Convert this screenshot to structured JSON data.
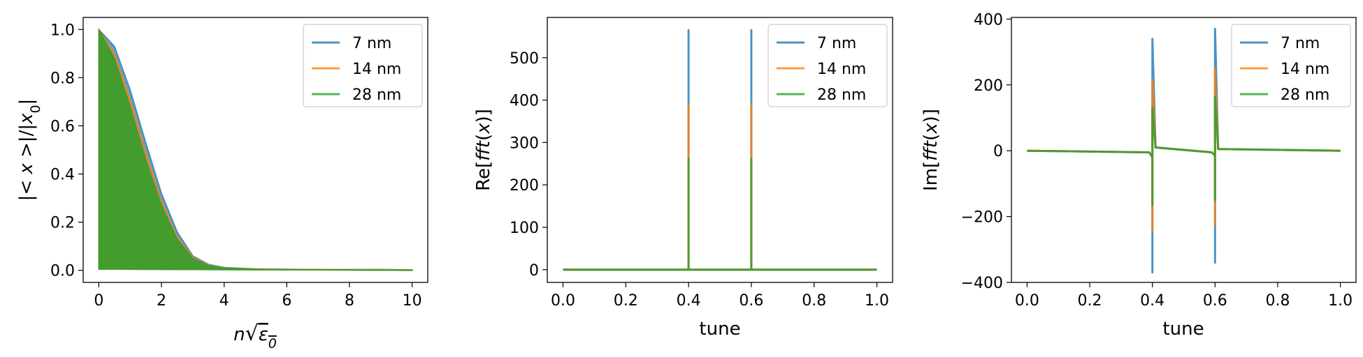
{
  "chart_data": [
    {
      "type": "line",
      "title": "",
      "xlabel": "nsqrt(eps0)",
      "ylabel": "|<x>|/|x0|",
      "xlim": [
        -0.5,
        10.5
      ],
      "ylim": [
        -0.05,
        1.05
      ],
      "xticks": [
        0,
        2,
        4,
        6,
        8,
        10
      ],
      "xtick_labels": [
        "0",
        "2",
        "4",
        "6",
        "8",
        "10"
      ],
      "yticks": [
        0.0,
        0.2,
        0.4,
        0.6,
        0.8,
        1.0
      ],
      "ytick_labels": [
        "0.0",
        "0.2",
        "0.4",
        "0.6",
        "0.8",
        "1.0"
      ],
      "legend": "top-right",
      "grid": false,
      "series": [
        {
          "name": "7 nm",
          "color": "#1f77b4",
          "x": [
            0,
            0.5,
            1.0,
            1.5,
            2.0,
            2.5,
            3.0,
            3.5,
            4.0,
            5.0,
            6.0,
            7.0,
            8.0,
            9.0,
            10.0
          ],
          "y": [
            1.0,
            0.93,
            0.75,
            0.53,
            0.32,
            0.16,
            0.06,
            0.025,
            0.012,
            0.006,
            0.004,
            0.003,
            0.003,
            0.003,
            0.002
          ]
        },
        {
          "name": "14 nm",
          "color": "#ff7f0e",
          "x": [
            0,
            0.5,
            1.0,
            1.5,
            2.0,
            2.5,
            3.0,
            3.5,
            4.0,
            5.0,
            6.0,
            7.0,
            8.0,
            9.0,
            10.0
          ],
          "y": [
            1.0,
            0.9,
            0.71,
            0.49,
            0.29,
            0.14,
            0.055,
            0.022,
            0.01,
            0.006,
            0.004,
            0.004,
            0.003,
            0.003,
            0.002
          ]
        },
        {
          "name": "28 nm",
          "color": "#2ca02c",
          "x": [
            0,
            0.5,
            1.0,
            1.5,
            2.0,
            2.5,
            3.0,
            3.5,
            4.0,
            5.0,
            6.0,
            7.0,
            8.0,
            9.0,
            10.0
          ],
          "y": [
            1.0,
            0.88,
            0.68,
            0.46,
            0.27,
            0.13,
            0.05,
            0.02,
            0.01,
            0.005,
            0.004,
            0.003,
            0.003,
            0.003,
            0.002
          ]
        }
      ]
    },
    {
      "type": "line",
      "title": "",
      "xlabel": "tune",
      "ylabel": "Re[fft(x)]",
      "xlim": [
        -0.05,
        1.05
      ],
      "ylim": [
        -30,
        595
      ],
      "xticks": [
        0.0,
        0.2,
        0.4,
        0.6,
        0.8,
        1.0
      ],
      "xtick_labels": [
        "0.0",
        "0.2",
        "0.4",
        "0.6",
        "0.8",
        "1.0"
      ],
      "yticks": [
        0,
        100,
        200,
        300,
        400,
        500
      ],
      "ytick_labels": [
        "0",
        "100",
        "200",
        "300",
        "400",
        "500"
      ],
      "legend": "top-right",
      "grid": false,
      "series": [
        {
          "name": "7 nm",
          "color": "#1f77b4",
          "x": [
            0,
            0.4,
            0.4,
            0.4,
            0.6,
            0.6,
            0.6,
            1.0
          ],
          "y": [
            0,
            0,
            565,
            0,
            0,
            565,
            0,
            0
          ]
        },
        {
          "name": "14 nm",
          "color": "#ff7f0e",
          "x": [
            0,
            0.4,
            0.4,
            0.4,
            0.6,
            0.6,
            0.6,
            1.0
          ],
          "y": [
            0,
            0,
            390,
            0,
            0,
            390,
            0,
            0
          ]
        },
        {
          "name": "28 nm",
          "color": "#2ca02c",
          "x": [
            0,
            0.4,
            0.4,
            0.4,
            0.6,
            0.6,
            0.6,
            1.0
          ],
          "y": [
            0,
            0,
            262,
            0,
            0,
            262,
            0,
            0
          ]
        }
      ]
    },
    {
      "type": "line",
      "title": "",
      "xlabel": "tune",
      "ylabel": "Im[fft(x)]",
      "xlim": [
        -0.05,
        1.05
      ],
      "ylim": [
        -400,
        405
      ],
      "xticks": [
        0.0,
        0.2,
        0.4,
        0.6,
        0.8,
        1.0
      ],
      "xtick_labels": [
        "0.0",
        "0.2",
        "0.4",
        "0.6",
        "0.8",
        "1.0"
      ],
      "yticks": [
        -400,
        -200,
        0,
        200,
        400
      ],
      "ytick_labels": [
        "−400",
        "−200",
        "0",
        "200",
        "400"
      ],
      "legend": "top-right",
      "grid": false,
      "series": [
        {
          "name": "7 nm",
          "color": "#1f77b4",
          "x": [
            0,
            0.39,
            0.4,
            0.4,
            0.4,
            0.41,
            0.59,
            0.6,
            0.6,
            0.6,
            0.61,
            1.0
          ],
          "y": [
            0,
            -5,
            -20,
            -370,
            340,
            10,
            -5,
            -15,
            -340,
            370,
            5,
            0
          ]
        },
        {
          "name": "14 nm",
          "color": "#ff7f0e",
          "x": [
            0,
            0.39,
            0.4,
            0.4,
            0.4,
            0.41,
            0.59,
            0.6,
            0.6,
            0.6,
            0.61,
            1.0
          ],
          "y": [
            0,
            -5,
            -20,
            -245,
            215,
            10,
            -5,
            -15,
            -225,
            250,
            5,
            0
          ]
        },
        {
          "name": "28 nm",
          "color": "#2ca02c",
          "x": [
            0,
            0.39,
            0.4,
            0.4,
            0.4,
            0.41,
            0.59,
            0.6,
            0.6,
            0.6,
            0.61,
            1.0
          ],
          "y": [
            0,
            -5,
            -20,
            -165,
            130,
            10,
            -5,
            -15,
            -150,
            165,
            5,
            0
          ]
        }
      ]
    }
  ]
}
